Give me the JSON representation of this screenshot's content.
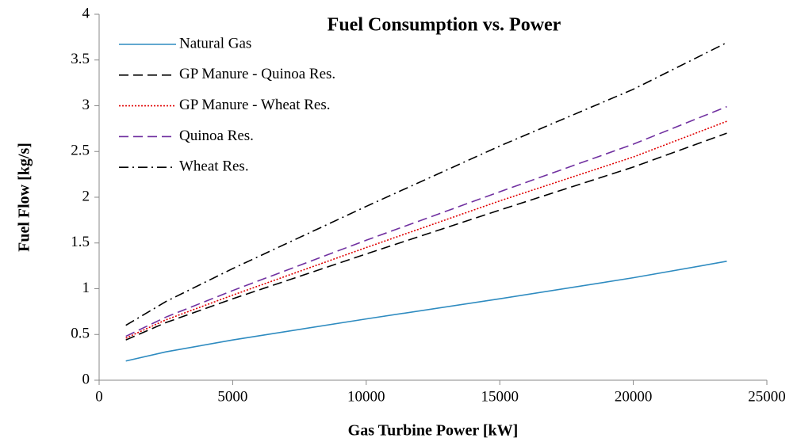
{
  "chart_data": {
    "type": "line",
    "title": "Fuel Consumption vs. Power",
    "xlabel": "Gas Turbine Power [kW]",
    "ylabel": "Fuel Flow [kg/s]",
    "x": [
      1000,
      2500,
      5000,
      10000,
      15000,
      20000,
      23500
    ],
    "series": [
      {
        "name": "Natural Gas",
        "color": "#2e8bc0",
        "style": "solid",
        "values": [
          0.21,
          0.31,
          0.44,
          0.67,
          0.89,
          1.12,
          1.3
        ]
      },
      {
        "name": "GP Manure - Quinoa Res.",
        "color": "#000000",
        "style": "dashed",
        "values": [
          0.44,
          0.63,
          0.89,
          1.38,
          1.86,
          2.33,
          2.7
        ]
      },
      {
        "name": "GP Manure - Wheat Res.",
        "color": "#e00000",
        "style": "dotted",
        "values": [
          0.46,
          0.66,
          0.93,
          1.45,
          1.96,
          2.44,
          2.83
        ]
      },
      {
        "name": "Quinoa Res.",
        "color": "#7030a0",
        "style": "dashed",
        "values": [
          0.48,
          0.69,
          0.98,
          1.53,
          2.06,
          2.58,
          2.99
        ]
      },
      {
        "name": "Wheat Res.",
        "color": "#000000",
        "style": "dashdot",
        "values": [
          0.6,
          0.86,
          1.22,
          1.9,
          2.56,
          3.18,
          3.69
        ]
      }
    ],
    "xlim": [
      0,
      25000
    ],
    "xticks": [
      0,
      5000,
      10000,
      15000,
      20000,
      25000
    ],
    "ylim": [
      0,
      4
    ],
    "yticks": [
      0,
      0.5,
      1,
      1.5,
      2,
      2.5,
      3,
      3.5,
      4
    ],
    "grid": false,
    "legend": "upper left"
  }
}
